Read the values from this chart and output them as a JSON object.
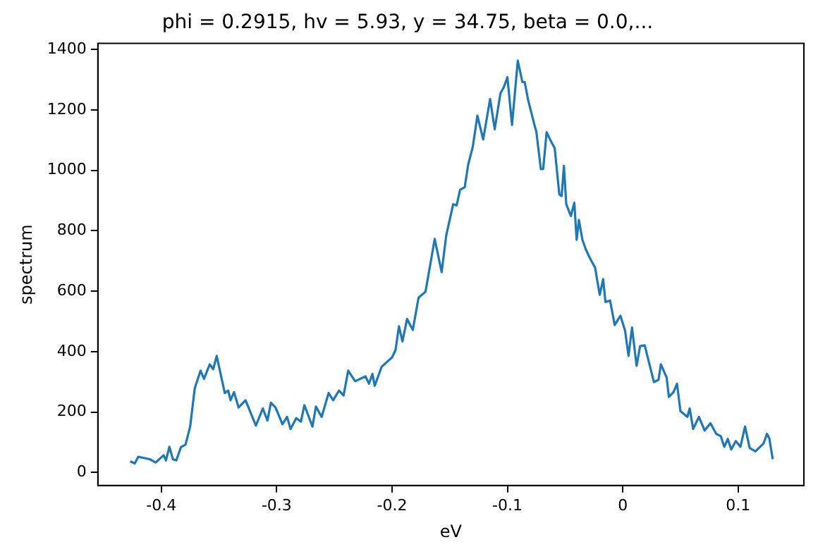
{
  "chart_data": {
    "type": "line",
    "title": "phi = 0.2915, hv = 5.93, y = 34.75, beta = 0.0,...",
    "xlabel": "eV",
    "ylabel": "spectrum",
    "xlim": [
      -0.455,
      0.157
    ],
    "xticks": [
      -0.4,
      -0.3,
      -0.2,
      -0.1,
      0.0,
      0.1
    ],
    "ylim": [
      -43,
      1420
    ],
    "yticks": [
      0,
      200,
      400,
      600,
      800,
      1000,
      1200,
      1400
    ],
    "series": [
      {
        "color": "#1f77b4",
        "x": [
          -0.427,
          -0.423,
          -0.42,
          -0.41,
          -0.405,
          -0.398,
          -0.396,
          -0.393,
          -0.39,
          -0.387,
          -0.383,
          -0.379,
          -0.375,
          -0.371,
          -0.366,
          -0.363,
          -0.358,
          -0.355,
          -0.352,
          -0.345,
          -0.342,
          -0.34,
          -0.337,
          -0.333,
          -0.327,
          -0.318,
          -0.312,
          -0.308,
          -0.305,
          -0.301,
          -0.295,
          -0.291,
          -0.288,
          -0.283,
          -0.279,
          -0.276,
          -0.269,
          -0.266,
          -0.261,
          -0.255,
          -0.251,
          -0.246,
          -0.242,
          -0.238,
          -0.232,
          -0.223,
          -0.22,
          -0.217,
          -0.215,
          -0.209,
          -0.2,
          -0.197,
          -0.194,
          -0.191,
          -0.187,
          -0.182,
          -0.177,
          -0.171,
          -0.163,
          -0.157,
          -0.153,
          -0.147,
          -0.144,
          -0.141,
          -0.137,
          -0.134,
          -0.13,
          -0.126,
          -0.121,
          -0.115,
          -0.111,
          -0.106,
          -0.103,
          -0.1,
          -0.096,
          -0.091,
          -0.087,
          -0.085,
          -0.082,
          -0.076,
          -0.075,
          -0.071,
          -0.069,
          -0.066,
          -0.063,
          -0.059,
          -0.055,
          -0.053,
          -0.051,
          -0.049,
          -0.045,
          -0.042,
          -0.04,
          -0.038,
          -0.035,
          -0.032,
          -0.028,
          -0.024,
          -0.02,
          -0.017,
          -0.015,
          -0.011,
          -0.007,
          -0.002,
          0.002,
          0.005,
          0.008,
          0.012,
          0.015,
          0.019,
          0.027,
          0.031,
          0.033,
          0.038,
          0.04,
          0.044,
          0.047,
          0.05,
          0.056,
          0.058,
          0.061,
          0.066,
          0.071,
          0.076,
          0.081,
          0.085,
          0.088,
          0.091,
          0.094,
          0.098,
          0.102,
          0.106,
          0.11,
          0.115,
          0.122,
          0.125,
          0.127,
          0.13
        ],
        "values": [
          37,
          30,
          52,
          44,
          33,
          57,
          40,
          85,
          44,
          40,
          84,
          92,
          152,
          279,
          337,
          310,
          358,
          342,
          386,
          263,
          271,
          239,
          266,
          215,
          239,
          155,
          212,
          172,
          231,
          215,
          160,
          184,
          144,
          180,
          168,
          223,
          152,
          218,
          184,
          263,
          239,
          271,
          255,
          337,
          302,
          318,
          294,
          326,
          287,
          350,
          381,
          405,
          484,
          434,
          508,
          472,
          579,
          598,
          773,
          663,
          785,
          888,
          884,
          936,
          944,
          1019,
          1078,
          1181,
          1102,
          1236,
          1136,
          1255,
          1276,
          1308,
          1150,
          1363,
          1292,
          1292,
          1232,
          1142,
          1130,
          1004,
          1004,
          1126,
          1102,
          1073,
          920,
          915,
          1015,
          888,
          849,
          893,
          770,
          836,
          770,
          738,
          706,
          678,
          588,
          640,
          564,
          569,
          488,
          519,
          469,
          386,
          480,
          353,
          418,
          421,
          299,
          307,
          358,
          315,
          250,
          266,
          294,
          203,
          184,
          212,
          144,
          184,
          139,
          163,
          128,
          120,
          85,
          111,
          76,
          104,
          85,
          152,
          81,
          70,
          96,
          128,
          113,
          44
        ]
      }
    ]
  }
}
